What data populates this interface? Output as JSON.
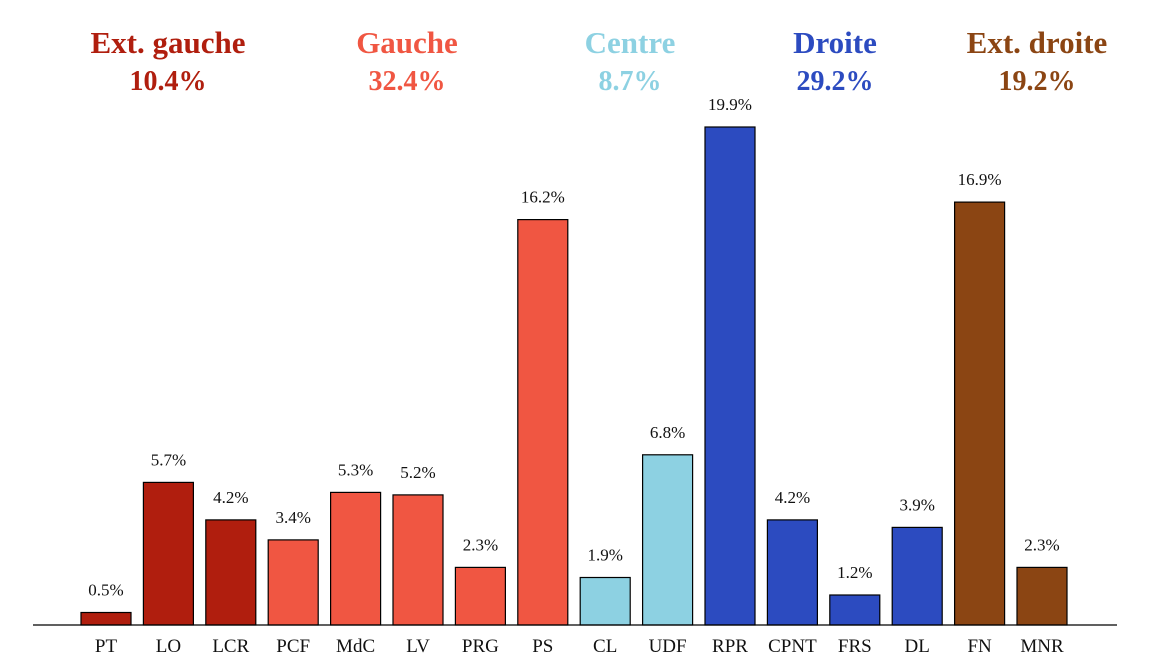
{
  "chart_data": {
    "type": "bar",
    "title": "",
    "xlabel": "",
    "ylabel": "",
    "ylim": [
      0,
      20.5
    ],
    "grid": false,
    "value_suffix": "%",
    "categories": [
      "PT",
      "LO",
      "LCR",
      "PCF",
      "MdC",
      "LV",
      "PRG",
      "PS",
      "CL",
      "UDF",
      "RPR",
      "CPNT",
      "FRS",
      "DL",
      "FN",
      "MNR"
    ],
    "values": [
      0.5,
      5.7,
      4.2,
      3.4,
      5.3,
      5.2,
      2.3,
      16.2,
      1.9,
      6.8,
      19.9,
      4.2,
      1.2,
      3.9,
      16.9,
      2.3
    ],
    "data_labels": [
      "0.5%",
      "5.7%",
      "4.2%",
      "3.4%",
      "5.3%",
      "5.2%",
      "2.3%",
      "16.2%",
      "1.9%",
      "6.8%",
      "19.9%",
      "4.2%",
      "1.2%",
      "3.9%",
      "16.9%",
      "2.3%"
    ],
    "bar_groups": [
      0,
      0,
      0,
      1,
      1,
      1,
      1,
      1,
      2,
      2,
      3,
      3,
      3,
      3,
      4,
      4
    ],
    "groups": [
      {
        "name": "Ext. gauche",
        "total": "10.4%",
        "color": "#b01e0e"
      },
      {
        "name": "Gauche",
        "total": "32.4%",
        "color": "#f05642"
      },
      {
        "name": "Centre",
        "total": "8.7%",
        "color": "#8dd1e2"
      },
      {
        "name": "Droite",
        "total": "29.2%",
        "color": "#2c4bc0"
      },
      {
        "name": "Ext. droite",
        "total": "19.2%",
        "color": "#8b4513"
      }
    ]
  }
}
